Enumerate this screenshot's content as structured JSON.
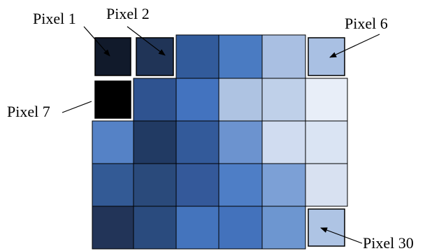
{
  "diagram": {
    "grid": {
      "rows": 5,
      "cols": 6,
      "cell_colors": [
        [
          "#111a2b",
          "#203457",
          "#325b9b",
          "#4a7bc2",
          "#a9bfe2",
          "#a9c0e3"
        ],
        [
          "#000000",
          "#2f5390",
          "#4373bf",
          "#aec3e2",
          "#bfd0e9",
          "#e8eef8"
        ],
        [
          "#5582c6",
          "#213a63",
          "#335a9a",
          "#6c93cf",
          "#d0dcf0",
          "#dae4f3"
        ],
        [
          "#335a95",
          "#2a4a7b",
          "#34599a",
          "#4e7ec6",
          "#7ca0d6",
          "#d8e1f1"
        ],
        [
          "#223458",
          "#2a4b7e",
          "#4474bd",
          "#4372bc",
          "#6d96d0",
          "#aec4e4"
        ]
      ],
      "highlighted_pixels": [
        {
          "label_ref": "pixel_1",
          "row": 0,
          "col": 0
        },
        {
          "label_ref": "pixel_2",
          "row": 0,
          "col": 1
        },
        {
          "label_ref": "pixel_6",
          "row": 0,
          "col": 5
        },
        {
          "label_ref": "pixel_7",
          "row": 1,
          "col": 0
        },
        {
          "label_ref": "pixel_30",
          "row": 4,
          "col": 5
        }
      ]
    },
    "labels": {
      "pixel_1": "Pixel 1",
      "pixel_2": "Pixel 2",
      "pixel_6": "Pixel 6",
      "pixel_7": "Pixel 7",
      "pixel_30": "Pixel 30"
    },
    "colors": {
      "grid_line": "#000000",
      "highlight_border": "#000000",
      "background": "#ffffff"
    }
  }
}
